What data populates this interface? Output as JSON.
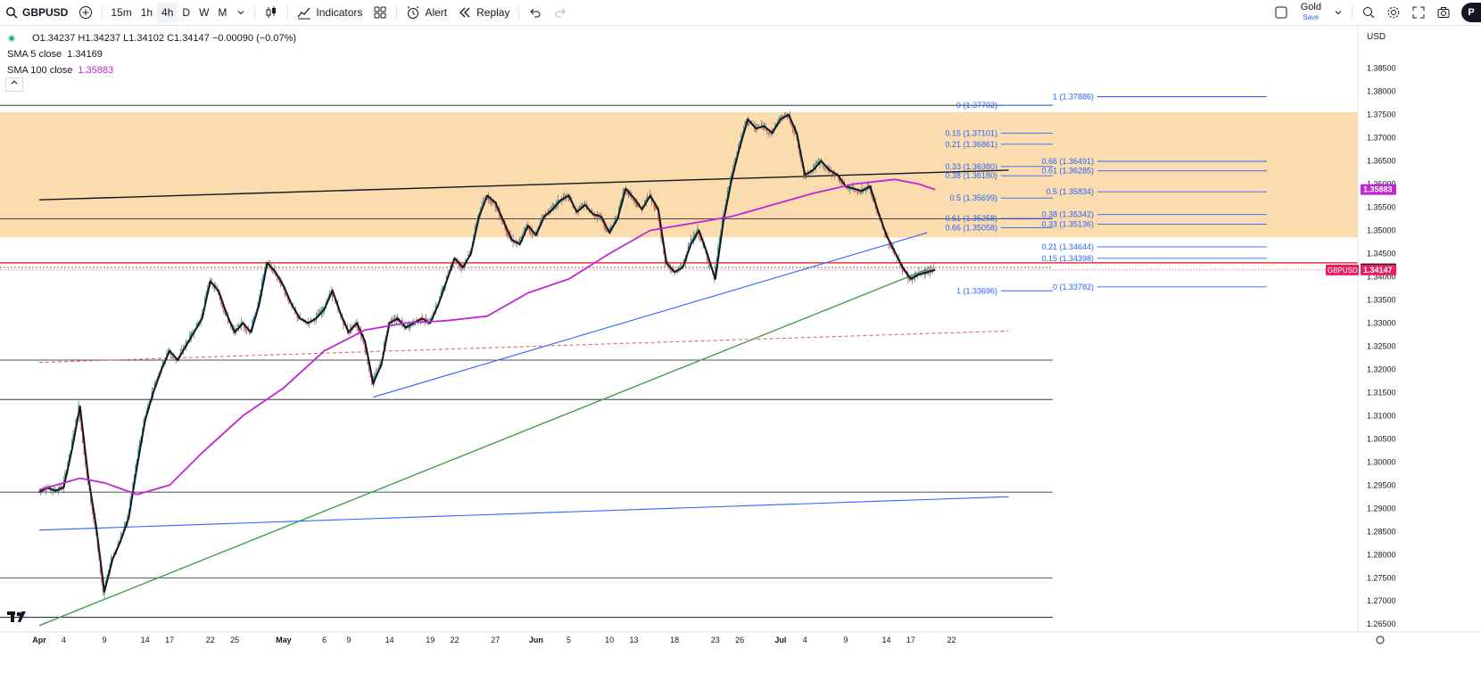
{
  "toolbar": {
    "symbol": "GBPUSD",
    "intervals": [
      "15m",
      "1h",
      "4h",
      "D",
      "W",
      "M"
    ],
    "active_interval": "4h",
    "indicators_label": "Indicators",
    "alert_label": "Alert",
    "replay_label": "Replay",
    "gold_label": "Gold",
    "gold_sub": "Save",
    "publish_label": "P"
  },
  "legend": {
    "ohlc": "O1.34237 H1.34237 L1.34102 C1.34147 −0.00090 (−0.07%)",
    "sma5_label": "SMA 5 close",
    "sma5_value": "1.34169",
    "sma100_label": "SMA 100 close",
    "sma100_value": "1.35883"
  },
  "currency": "USD",
  "price_axis": {
    "min": 1.261,
    "max": 1.389,
    "ticks": [
      "1.38500",
      "1.38000",
      "1.37500",
      "1.37000",
      "1.36500",
      "1.36000",
      "1.35500",
      "1.35000",
      "1.34500",
      "1.34000",
      "1.33500",
      "1.33000",
      "1.32500",
      "1.32000",
      "1.31500",
      "1.31000",
      "1.30500",
      "1.30000",
      "1.29500",
      "1.29000",
      "1.28500",
      "1.28000",
      "1.27500",
      "1.27000",
      "1.26500"
    ]
  },
  "time_axis": {
    "labels": [
      {
        "t": "Apr",
        "bold": true,
        "day": 0
      },
      {
        "t": "4",
        "day": 3
      },
      {
        "t": "9",
        "day": 8
      },
      {
        "t": "14",
        "day": 13
      },
      {
        "t": "17",
        "day": 16
      },
      {
        "t": "22",
        "day": 21
      },
      {
        "t": "25",
        "day": 24
      },
      {
        "t": "May",
        "bold": true,
        "day": 30
      },
      {
        "t": "6",
        "day": 35
      },
      {
        "t": "9",
        "day": 38
      },
      {
        "t": "14",
        "day": 43
      },
      {
        "t": "19",
        "day": 48
      },
      {
        "t": "22",
        "day": 51
      },
      {
        "t": "27",
        "day": 56
      },
      {
        "t": "Jun",
        "bold": true,
        "day": 61
      },
      {
        "t": "5",
        "day": 65
      },
      {
        "t": "10",
        "day": 70
      },
      {
        "t": "13",
        "day": 73
      },
      {
        "t": "18",
        "day": 78
      },
      {
        "t": "23",
        "day": 83
      },
      {
        "t": "26",
        "day": 86
      },
      {
        "t": "Jul",
        "bold": true,
        "day": 91
      },
      {
        "t": "4",
        "day": 94
      },
      {
        "t": "9",
        "day": 99
      },
      {
        "t": "14",
        "day": 104
      },
      {
        "t": "17",
        "day": 107
      },
      {
        "t": "22",
        "day": 112
      }
    ]
  },
  "chart_data": {
    "type": "line",
    "title": "GBPUSD 4h",
    "ylim": [
      1.261,
      1.389
    ],
    "x_unit": "days since Apr 1",
    "series": [
      {
        "name": "GBPUSD",
        "color": "#131722",
        "points": [
          [
            0,
            1.2935
          ],
          [
            1,
            1.2945
          ],
          [
            2,
            1.2938
          ],
          [
            3,
            1.2945
          ],
          [
            4,
            1.3025
          ],
          [
            5,
            1.312
          ],
          [
            6,
            1.297
          ],
          [
            7,
            1.286
          ],
          [
            8,
            1.272
          ],
          [
            9,
            1.279
          ],
          [
            10,
            1.283
          ],
          [
            11,
            1.288
          ],
          [
            12,
            1.299
          ],
          [
            13,
            1.309
          ],
          [
            14,
            1.315
          ],
          [
            15,
            1.32
          ],
          [
            16,
            1.324
          ],
          [
            17,
            1.322
          ],
          [
            18,
            1.325
          ],
          [
            19,
            1.328
          ],
          [
            20,
            1.331
          ],
          [
            21,
            1.339
          ],
          [
            22,
            1.337
          ],
          [
            23,
            1.332
          ],
          [
            24,
            1.328
          ],
          [
            25,
            1.33
          ],
          [
            26,
            1.328
          ],
          [
            27,
            1.334
          ],
          [
            28,
            1.343
          ],
          [
            29,
            1.341
          ],
          [
            30,
            1.338
          ],
          [
            31,
            1.334
          ],
          [
            32,
            1.331
          ],
          [
            33,
            1.33
          ],
          [
            34,
            1.331
          ],
          [
            35,
            1.333
          ],
          [
            36,
            1.337
          ],
          [
            37,
            1.332
          ],
          [
            38,
            1.328
          ],
          [
            39,
            1.33
          ],
          [
            40,
            1.326
          ],
          [
            41,
            1.317
          ],
          [
            42,
            1.321
          ],
          [
            43,
            1.33
          ],
          [
            44,
            1.331
          ],
          [
            45,
            1.329
          ],
          [
            46,
            1.33
          ],
          [
            47,
            1.331
          ],
          [
            48,
            1.33
          ],
          [
            49,
            1.334
          ],
          [
            50,
            1.339
          ],
          [
            51,
            1.344
          ],
          [
            52,
            1.342
          ],
          [
            53,
            1.345
          ],
          [
            54,
            1.353
          ],
          [
            55,
            1.3575
          ],
          [
            56,
            1.356
          ],
          [
            57,
            1.352
          ],
          [
            58,
            1.348
          ],
          [
            59,
            1.347
          ],
          [
            60,
            1.351
          ],
          [
            61,
            1.349
          ],
          [
            62,
            1.353
          ],
          [
            63,
            1.3545
          ],
          [
            64,
            1.3565
          ],
          [
            65,
            1.3575
          ],
          [
            66,
            1.354
          ],
          [
            67,
            1.3555
          ],
          [
            68,
            1.3535
          ],
          [
            69,
            1.353
          ],
          [
            70,
            1.3495
          ],
          [
            71,
            1.3525
          ],
          [
            72,
            1.359
          ],
          [
            73,
            1.357
          ],
          [
            74,
            1.3545
          ],
          [
            75,
            1.3575
          ],
          [
            76,
            1.3545
          ],
          [
            77,
            1.343
          ],
          [
            78,
            1.341
          ],
          [
            79,
            1.342
          ],
          [
            80,
            1.347
          ],
          [
            81,
            1.35
          ],
          [
            82,
            1.345
          ],
          [
            83,
            1.3395
          ],
          [
            84,
            1.352
          ],
          [
            85,
            1.361
          ],
          [
            86,
            1.368
          ],
          [
            87,
            1.374
          ],
          [
            88,
            1.372
          ],
          [
            89,
            1.3725
          ],
          [
            90,
            1.371
          ],
          [
            91,
            1.374
          ],
          [
            92,
            1.375
          ],
          [
            93,
            1.371
          ],
          [
            94,
            1.362
          ],
          [
            95,
            1.363
          ],
          [
            96,
            1.365
          ],
          [
            97,
            1.363
          ],
          [
            98,
            1.362
          ],
          [
            99,
            1.3595
          ],
          [
            100,
            1.359
          ],
          [
            101,
            1.3585
          ],
          [
            102,
            1.3595
          ],
          [
            103,
            1.354
          ],
          [
            104,
            1.349
          ],
          [
            105,
            1.3455
          ],
          [
            106,
            1.342
          ],
          [
            107,
            1.3395
          ],
          [
            108,
            1.3405
          ],
          [
            109,
            1.341
          ],
          [
            110,
            1.3415
          ]
        ]
      },
      {
        "name": "SMA 100 close",
        "color": "#c026d3",
        "points": [
          [
            0,
            1.294
          ],
          [
            3,
            1.2955
          ],
          [
            5,
            1.2965
          ],
          [
            8,
            1.2955
          ],
          [
            12,
            1.293
          ],
          [
            16,
            1.295
          ],
          [
            20,
            1.302
          ],
          [
            25,
            1.31
          ],
          [
            30,
            1.316
          ],
          [
            35,
            1.324
          ],
          [
            40,
            1.3285
          ],
          [
            45,
            1.33
          ],
          [
            50,
            1.3305
          ],
          [
            55,
            1.3315
          ],
          [
            60,
            1.3365
          ],
          [
            65,
            1.3395
          ],
          [
            70,
            1.345
          ],
          [
            75,
            1.35
          ],
          [
            80,
            1.3515
          ],
          [
            85,
            1.353
          ],
          [
            90,
            1.3555
          ],
          [
            95,
            1.358
          ],
          [
            100,
            1.36
          ],
          [
            105,
            1.361
          ],
          [
            108,
            1.36
          ],
          [
            110,
            1.3588
          ]
        ]
      }
    ],
    "levels": {
      "resistance_zone": [
        1.3485,
        1.3755
      ],
      "current_price": 1.34147,
      "red_level": 1.343,
      "horizontal": [
        1.377,
        1.3525,
        1.322,
        1.3135,
        1.2935,
        1.275,
        1.2665
      ],
      "short_horizontal": [
        1.342
      ]
    },
    "fib_left": [
      {
        "label": "0 (1.37702)",
        "v": 1.37702
      },
      {
        "label": "0.15 (1.37101)",
        "v": 1.37101
      },
      {
        "label": "0.21 (1.36861)",
        "v": 1.36861
      },
      {
        "label": "0.33 (1.36380)",
        "v": 1.3638
      },
      {
        "label": "0.38 (1.36180)",
        "v": 1.3618
      },
      {
        "label": "0.5 (1.35699)",
        "v": 1.35699
      },
      {
        "label": "0.61 (1.35258)",
        "v": 1.35258
      },
      {
        "label": "0.66 (1.35058)",
        "v": 1.35058
      },
      {
        "label": "1 (1.33696)",
        "v": 1.33696
      }
    ],
    "fib_right": [
      {
        "label": "1 (1.37886)",
        "v": 1.37886
      },
      {
        "label": "0.66 (1.36491)",
        "v": 1.36491
      },
      {
        "label": "0.61 (1.36285)",
        "v": 1.36285
      },
      {
        "label": "0.5 (1.35834)",
        "v": 1.35834
      },
      {
        "label": "0.38 (1.35342)",
        "v": 1.35342
      },
      {
        "label": "0.33 (1.35136)",
        "v": 1.35136
      },
      {
        "label": "0.21 (1.34644)",
        "v": 1.34644
      },
      {
        "label": "0.15 (1.34398)",
        "v": 1.34398
      },
      {
        "label": "0 (1.33782)",
        "v": 1.33782
      }
    ],
    "trendlines": [
      {
        "name": "black-channel",
        "color": "#131722",
        "from": [
          0,
          1.3566
        ],
        "to": [
          119,
          1.363
        ]
      },
      {
        "name": "blue-rising",
        "color": "#2962ff",
        "from": [
          41,
          1.314
        ],
        "to": [
          109,
          1.3495
        ]
      },
      {
        "name": "green-support",
        "color": "#43a047",
        "from": [
          0,
          1.2647
        ],
        "to": [
          109,
          1.3416
        ]
      },
      {
        "name": "blue-flat",
        "color": "#2962ff",
        "from": [
          0,
          1.2853
        ],
        "to": [
          119,
          1.2925
        ]
      },
      {
        "name": "red-dashed",
        "color": "#e06666",
        "from": [
          0,
          1.3215
        ],
        "to": [
          119,
          1.3283
        ]
      }
    ],
    "price_labels": [
      {
        "v": 1.35883,
        "text": "1.35883",
        "color": "#c026d3"
      },
      {
        "v": 1.34169,
        "text": "1.34169",
        "color": "#131722"
      },
      {
        "v": 1.34147,
        "text": "1.34147",
        "color": "#e91e63",
        "tag": "GBPUSD"
      }
    ]
  }
}
